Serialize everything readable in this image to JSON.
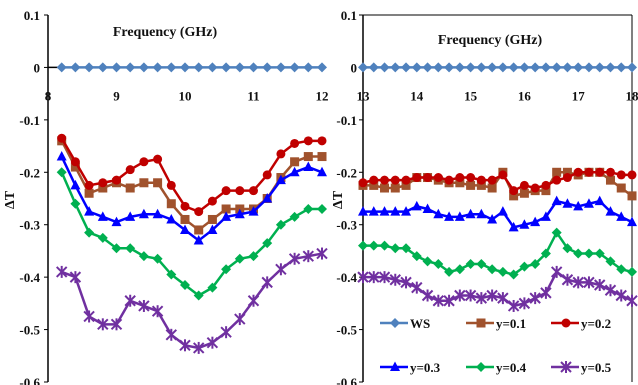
{
  "chart_data": [
    {
      "type": "line",
      "axis_title": "Frequency (GHz)",
      "ylabel": "ΔT",
      "xlim": [
        8,
        12
      ],
      "ylim": [
        -0.6,
        0.1
      ],
      "x_ticks": [
        "8",
        "9",
        "10",
        "11",
        "12"
      ],
      "y_ticks": [
        "0.1",
        "0",
        "-0.1",
        "-0.2",
        "-0.3",
        "-0.4",
        "-0.5",
        "-0.6"
      ],
      "x_axis_at_y": 0,
      "grid": false,
      "x": [
        8.2,
        8.4,
        8.6,
        8.8,
        9.0,
        9.2,
        9.4,
        9.6,
        9.8,
        10.0,
        10.2,
        10.4,
        10.6,
        10.8,
        11.0,
        11.2,
        11.4,
        11.6,
        11.8,
        12.0
      ],
      "series": [
        {
          "name": "WS",
          "color": "#4F81BD",
          "marker": "diamond",
          "values": [
            0,
            0,
            0,
            0,
            0,
            0,
            0,
            0,
            0,
            0,
            0,
            0,
            0,
            0,
            0,
            0,
            0,
            0,
            0,
            0
          ]
        },
        {
          "name": "y=0.1",
          "color": "#A0522D",
          "marker": "square",
          "values": [
            -0.14,
            -0.19,
            -0.24,
            -0.23,
            -0.22,
            -0.23,
            -0.22,
            -0.22,
            -0.26,
            -0.29,
            -0.31,
            -0.29,
            -0.27,
            -0.27,
            -0.27,
            -0.25,
            -0.21,
            -0.18,
            -0.17,
            -0.17
          ]
        },
        {
          "name": "y=0.2",
          "color": "#C00000",
          "marker": "circle",
          "values": [
            -0.135,
            -0.18,
            -0.225,
            -0.22,
            -0.215,
            -0.195,
            -0.18,
            -0.175,
            -0.225,
            -0.265,
            -0.275,
            -0.255,
            -0.235,
            -0.235,
            -0.235,
            -0.205,
            -0.165,
            -0.145,
            -0.14,
            -0.14
          ]
        },
        {
          "name": "y=0.3",
          "color": "#0000FF",
          "marker": "triangle",
          "values": [
            -0.17,
            -0.225,
            -0.275,
            -0.285,
            -0.295,
            -0.285,
            -0.28,
            -0.28,
            -0.29,
            -0.31,
            -0.33,
            -0.31,
            -0.285,
            -0.28,
            -0.275,
            -0.25,
            -0.215,
            -0.2,
            -0.19,
            -0.2
          ]
        },
        {
          "name": "y=0.4",
          "color": "#00B050",
          "marker": "diamond",
          "values": [
            -0.2,
            -0.26,
            -0.315,
            -0.325,
            -0.345,
            -0.345,
            -0.36,
            -0.365,
            -0.395,
            -0.415,
            -0.435,
            -0.42,
            -0.385,
            -0.365,
            -0.36,
            -0.335,
            -0.3,
            -0.285,
            -0.27,
            -0.27
          ]
        },
        {
          "name": "y=0.5",
          "color": "#7030A0",
          "marker": "asterisk",
          "values": [
            -0.39,
            -0.4,
            -0.475,
            -0.49,
            -0.49,
            -0.445,
            -0.455,
            -0.465,
            -0.51,
            -0.53,
            -0.535,
            -0.525,
            -0.505,
            -0.48,
            -0.445,
            -0.41,
            -0.385,
            -0.365,
            -0.36,
            -0.355
          ]
        }
      ]
    },
    {
      "type": "line",
      "axis_title": "Frequency (GHz)",
      "ylabel": "ΔT",
      "xlim": [
        13,
        18
      ],
      "ylim": [
        -0.6,
        0.1
      ],
      "x_ticks": [
        "13",
        "14",
        "15",
        "16",
        "17",
        "18"
      ],
      "y_ticks": [
        "0.1",
        "0",
        "-0.1",
        "-0.2",
        "-0.3",
        "-0.4",
        "-0.5",
        "-0.6"
      ],
      "x_axis_at_y": 0,
      "grid": false,
      "legend_position": "bottom",
      "x": [
        13.0,
        13.2,
        13.4,
        13.6,
        13.8,
        14.0,
        14.2,
        14.4,
        14.6,
        14.8,
        15.0,
        15.2,
        15.4,
        15.6,
        15.8,
        16.0,
        16.2,
        16.4,
        16.6,
        16.8,
        17.0,
        17.2,
        17.4,
        17.6,
        17.8,
        18.0
      ],
      "series": [
        {
          "name": "WS",
          "color": "#4F81BD",
          "marker": "diamond",
          "values": [
            0,
            0,
            0,
            0,
            0,
            0,
            0,
            0,
            0,
            0,
            0,
            0,
            0,
            0,
            0,
            0,
            0,
            0,
            0,
            0,
            0,
            0,
            0,
            0,
            0,
            0
          ]
        },
        {
          "name": "y=0.1",
          "color": "#A0522D",
          "marker": "square",
          "values": [
            -0.225,
            -0.225,
            -0.23,
            -0.23,
            -0.225,
            -0.21,
            -0.21,
            -0.215,
            -0.22,
            -0.22,
            -0.225,
            -0.225,
            -0.23,
            -0.2,
            -0.245,
            -0.24,
            -0.235,
            -0.235,
            -0.2,
            -0.2,
            -0.205,
            -0.2,
            -0.2,
            -0.215,
            -0.23,
            -0.245
          ]
        },
        {
          "name": "y=0.2",
          "color": "#C00000",
          "marker": "circle",
          "values": [
            -0.22,
            -0.215,
            -0.215,
            -0.215,
            -0.215,
            -0.21,
            -0.21,
            -0.21,
            -0.215,
            -0.21,
            -0.21,
            -0.215,
            -0.215,
            -0.205,
            -0.235,
            -0.225,
            -0.23,
            -0.225,
            -0.215,
            -0.21,
            -0.2,
            -0.2,
            -0.2,
            -0.2,
            -0.205,
            -0.205
          ]
        },
        {
          "name": "y=0.3",
          "color": "#0000FF",
          "marker": "triangle",
          "values": [
            -0.275,
            -0.275,
            -0.275,
            -0.275,
            -0.275,
            -0.265,
            -0.27,
            -0.28,
            -0.285,
            -0.285,
            -0.28,
            -0.28,
            -0.29,
            -0.275,
            -0.305,
            -0.3,
            -0.295,
            -0.285,
            -0.255,
            -0.26,
            -0.265,
            -0.26,
            -0.255,
            -0.275,
            -0.285,
            -0.295
          ]
        },
        {
          "name": "y=0.4",
          "color": "#00B050",
          "marker": "diamond",
          "values": [
            -0.34,
            -0.34,
            -0.34,
            -0.345,
            -0.345,
            -0.36,
            -0.37,
            -0.375,
            -0.39,
            -0.385,
            -0.375,
            -0.375,
            -0.385,
            -0.39,
            -0.395,
            -0.38,
            -0.375,
            -0.355,
            -0.315,
            -0.345,
            -0.355,
            -0.355,
            -0.355,
            -0.37,
            -0.385,
            -0.39
          ]
        },
        {
          "name": "y=0.5",
          "color": "#7030A0",
          "marker": "asterisk",
          "values": [
            -0.4,
            -0.4,
            -0.4,
            -0.405,
            -0.41,
            -0.42,
            -0.435,
            -0.445,
            -0.445,
            -0.435,
            -0.435,
            -0.44,
            -0.435,
            -0.44,
            -0.455,
            -0.45,
            -0.44,
            -0.43,
            -0.39,
            -0.405,
            -0.41,
            -0.41,
            -0.415,
            -0.425,
            -0.435,
            -0.445
          ]
        }
      ]
    }
  ]
}
